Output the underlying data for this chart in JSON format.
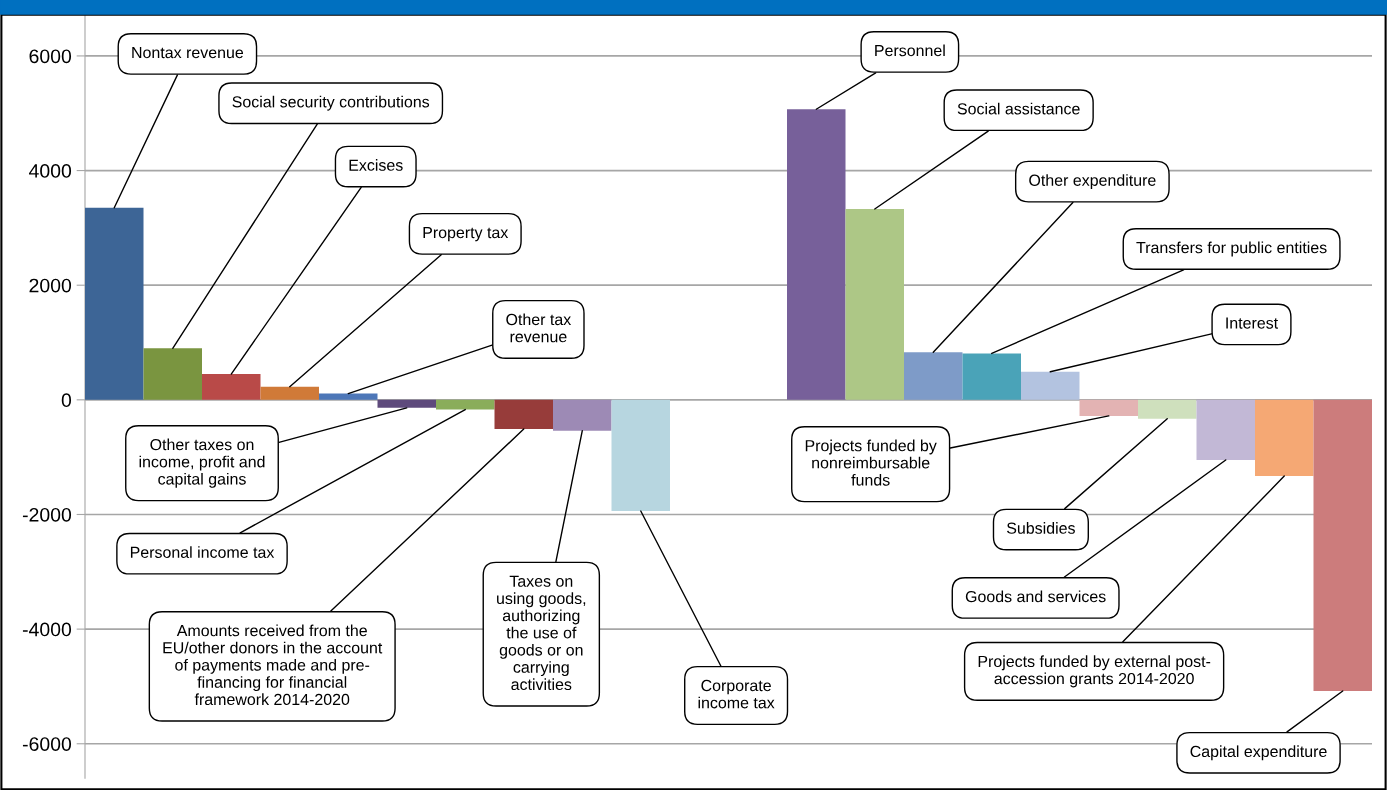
{
  "chart_data": {
    "type": "bar",
    "categories": [
      null,
      null,
      null,
      null,
      null,
      null,
      null,
      null,
      null,
      null,
      null,
      null,
      null,
      null,
      null,
      null,
      null,
      null,
      null,
      null,
      null,
      null
    ],
    "values": [
      3350,
      900,
      450,
      230,
      110,
      -140,
      -170,
      -510,
      -540,
      -1940,
      null,
      null,
      5070,
      3330,
      830,
      810,
      490,
      -280,
      -330,
      -1050,
      -1330,
      -5080
    ],
    "colors": [
      "#3d6596",
      "#7a9540",
      "#b94a48",
      "#d07a38",
      "#4d77b8",
      "#5e4a7c",
      "#8aad5a",
      "#973c3a",
      "#9d8ab5",
      "#b7d6e0",
      null,
      null,
      "#77609a",
      "#adc786",
      "#7e9bc8",
      "#4aa3b8",
      "#b3c3e0",
      "#e3b3b3",
      "#cfe0bd",
      "#c2b8d6",
      "#f5a874",
      "#cc7c7c"
    ],
    "annotations": [
      "Nontax revenue",
      "Social security contributions",
      "Excises",
      "Property tax",
      "Other tax\nrevenue",
      "Other taxes on\nincome, profit and\ncapital gains",
      "Personal income tax",
      "Amounts received from the\nEU/other donors in the account\nof payments made and pre-\nfinancing for financial\nframework 2014-2020",
      "Taxes on\nusing goods,\nauthorizing\nthe use of\ngoods or on\ncarrying\nactivities",
      "Corporate\nincome tax",
      "Personnel",
      "Social assistance",
      "Other expenditure",
      "Transfers for public entities",
      "Interest",
      "Projects funded by\nnonreimbursable\nfunds",
      "Subsidies",
      "Goods and services",
      "Projects funded by external post-\naccession grants 2014-2020",
      "Capital expenditure"
    ],
    "ylim": [
      -6600,
      6700
    ],
    "yticks": [
      -6000,
      -4000,
      -2000,
      0,
      2000,
      4000,
      6000
    ],
    "grid": "y"
  }
}
